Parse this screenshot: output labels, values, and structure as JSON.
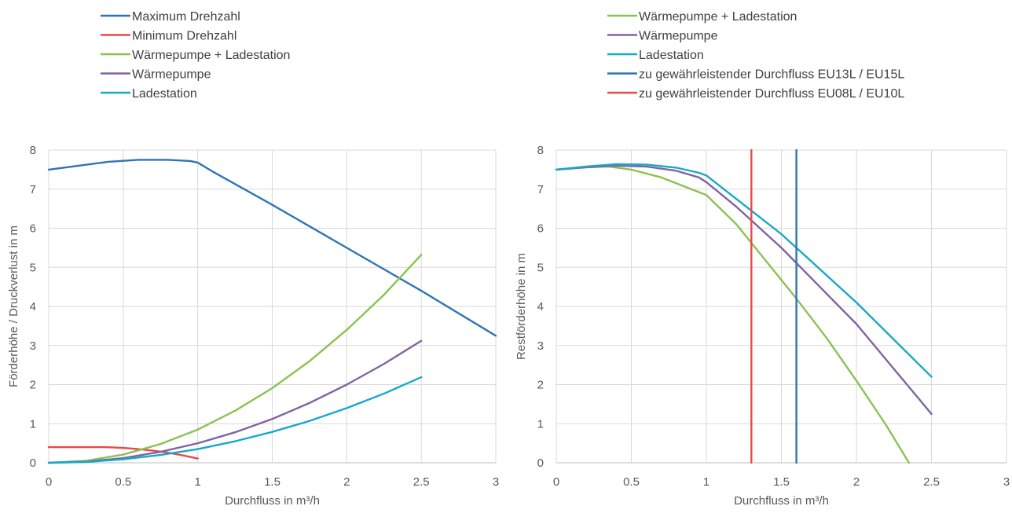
{
  "chart_data": [
    {
      "type": "line",
      "xlabel": "Durchfluss in m³/h",
      "ylabel": "Förderhöhe / Druckverlust in m",
      "xlim": [
        0,
        3
      ],
      "ylim": [
        0,
        8
      ],
      "x_ticks": [
        "0",
        "0.5",
        "1",
        "1.5",
        "2",
        "2.5",
        "3"
      ],
      "y_ticks": [
        "0",
        "1",
        "2",
        "3",
        "4",
        "5",
        "6",
        "7",
        "8"
      ],
      "grid": true,
      "legend_position": "top-left",
      "series": [
        {
          "name": "Maximum Drehzahl",
          "color": "#2e75b6",
          "x": [
            0,
            0.2,
            0.4,
            0.6,
            0.8,
            0.95,
            1.0,
            1.1,
            1.5,
            2.0,
            2.5,
            3.0
          ],
          "y": [
            7.5,
            7.6,
            7.7,
            7.75,
            7.75,
            7.72,
            7.68,
            7.45,
            6.6,
            5.5,
            4.4,
            3.25
          ]
        },
        {
          "name": "Minimum Drehzahl",
          "color": "#e84a4a",
          "x": [
            0,
            0.2,
            0.38,
            0.5,
            0.6,
            0.7,
            0.8,
            0.9,
            1.0
          ],
          "y": [
            0.4,
            0.4,
            0.4,
            0.38,
            0.35,
            0.31,
            0.26,
            0.19,
            0.11
          ]
        },
        {
          "name": "Wärmepumpe + Ladestation",
          "color": "#8cc152",
          "x": [
            0,
            0.25,
            0.5,
            0.75,
            1.0,
            1.25,
            1.5,
            1.75,
            2.0,
            2.25,
            2.5
          ],
          "y": [
            0,
            0.05,
            0.21,
            0.48,
            0.85,
            1.33,
            1.91,
            2.6,
            3.4,
            4.3,
            5.32
          ]
        },
        {
          "name": "Wärmepumpe",
          "color": "#8064a2",
          "x": [
            0,
            0.25,
            0.5,
            0.75,
            1.0,
            1.25,
            1.5,
            1.75,
            2.0,
            2.25,
            2.5
          ],
          "y": [
            0,
            0.03,
            0.12,
            0.28,
            0.5,
            0.78,
            1.12,
            1.53,
            2.0,
            2.53,
            3.12
          ]
        },
        {
          "name": "Ladestation",
          "color": "#17a9c8",
          "x": [
            0,
            0.25,
            0.5,
            0.75,
            1.0,
            1.25,
            1.5,
            1.75,
            2.0,
            2.25,
            2.5
          ],
          "y": [
            0,
            0.02,
            0.09,
            0.2,
            0.35,
            0.55,
            0.79,
            1.07,
            1.4,
            1.77,
            2.19
          ]
        }
      ]
    },
    {
      "type": "line",
      "xlabel": "Durchfluss in m³/h",
      "ylabel": "Restförderhöhe in m",
      "xlim": [
        0,
        3
      ],
      "ylim": [
        0,
        8
      ],
      "x_ticks": [
        "0",
        "0.5",
        "1",
        "1.5",
        "2",
        "2.5",
        "3"
      ],
      "y_ticks": [
        "0",
        "1",
        "2",
        "3",
        "4",
        "5",
        "6",
        "7",
        "8"
      ],
      "grid": true,
      "legend_position": "top-left",
      "series": [
        {
          "name": "Wärmepumpe + Ladestation",
          "color": "#8cc152",
          "x": [
            0,
            0.2,
            0.35,
            0.5,
            0.7,
            0.9,
            1.0,
            1.2,
            1.4,
            1.6,
            1.8,
            2.0,
            2.2,
            2.35
          ],
          "y": [
            7.5,
            7.56,
            7.58,
            7.5,
            7.3,
            7.0,
            6.85,
            6.1,
            5.15,
            4.2,
            3.2,
            2.1,
            0.95,
            0.0
          ]
        },
        {
          "name": "Wärmepumpe",
          "color": "#8064a2",
          "x": [
            0,
            0.2,
            0.4,
            0.6,
            0.8,
            0.95,
            1.0,
            1.2,
            1.5,
            2.0,
            2.5
          ],
          "y": [
            7.5,
            7.56,
            7.6,
            7.58,
            7.47,
            7.3,
            7.18,
            6.55,
            5.5,
            3.55,
            1.25
          ]
        },
        {
          "name": "Ladestation",
          "color": "#17a9c8",
          "x": [
            0,
            0.2,
            0.4,
            0.6,
            0.8,
            0.95,
            1.0,
            1.2,
            1.5,
            2.0,
            2.5
          ],
          "y": [
            7.5,
            7.58,
            7.64,
            7.63,
            7.55,
            7.42,
            7.35,
            6.75,
            5.85,
            4.1,
            2.2
          ]
        },
        {
          "name": "zu gewährleistender Durchfluss EU13L / EU15L",
          "color": "#2e75b6",
          "x": [
            1.6,
            1.6
          ],
          "y": [
            0,
            8
          ]
        },
        {
          "name": "zu gewährleistender Durchfluss EU08L / EU10L",
          "color": "#e84a4a",
          "x": [
            1.3,
            1.3
          ],
          "y": [
            0,
            8
          ]
        }
      ]
    }
  ]
}
